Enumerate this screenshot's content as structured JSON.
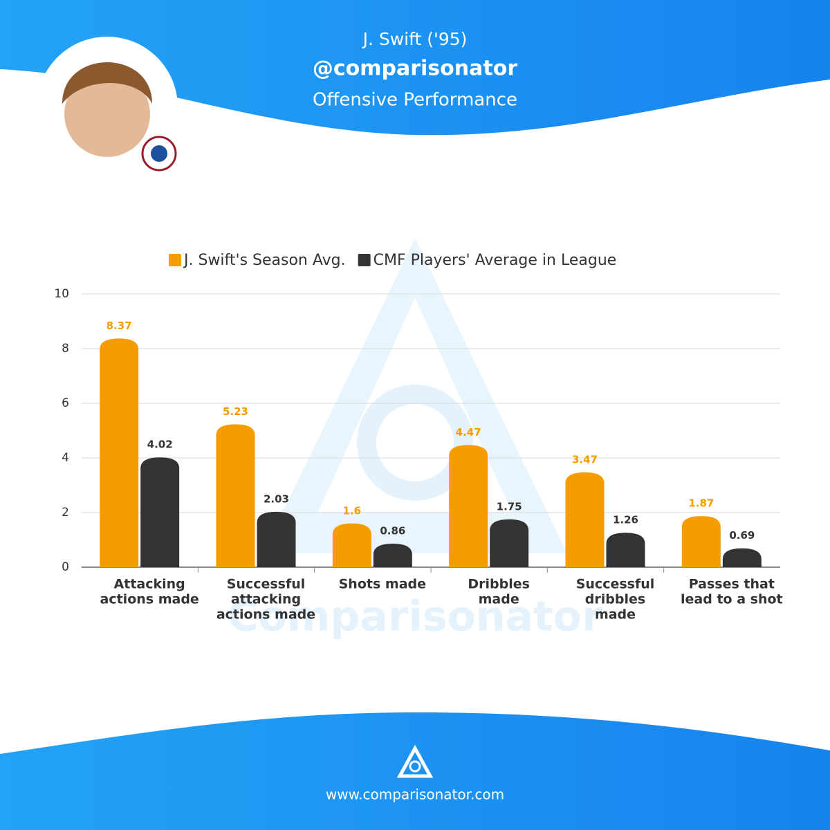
{
  "header": {
    "player": "J. Swift ('95)",
    "handle": "@comparisonator",
    "subtitle": "Offensive Performance"
  },
  "watermark": "Comparisonator",
  "footer": {
    "url": "www.comparisonator.com"
  },
  "chart_data": {
    "type": "bar",
    "categories": [
      [
        "Attacking",
        "actions made"
      ],
      [
        "Successful",
        "attacking",
        "actions made"
      ],
      [
        "Shots made"
      ],
      [
        "Dribbles",
        "made"
      ],
      [
        "Successful",
        "dribbles",
        "made"
      ],
      [
        "Passes that",
        "lead to a shot"
      ]
    ],
    "series": [
      {
        "name": "J. Swift's Season Avg.",
        "color": "#f59c00",
        "values": [
          8.37,
          5.23,
          1.6,
          4.47,
          3.47,
          1.87
        ]
      },
      {
        "name": "CMF Players' Average in League",
        "color": "#333333",
        "values": [
          4.02,
          2.03,
          0.86,
          1.75,
          1.26,
          0.69
        ]
      }
    ],
    "ylim": [
      0,
      10
    ],
    "yticks": [
      0,
      2,
      4,
      6,
      8,
      10
    ],
    "grid": true
  }
}
